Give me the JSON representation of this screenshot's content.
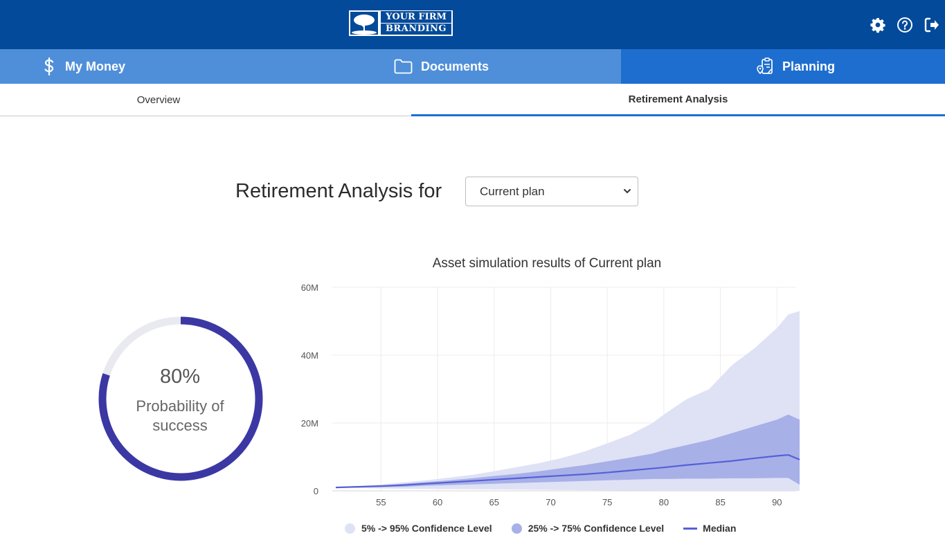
{
  "header": {
    "logo_line1": "YOUR FIRM",
    "logo_line2": "BRANDING",
    "icons": [
      "gear-icon",
      "help-icon",
      "logout-icon"
    ]
  },
  "nav": {
    "tabs": [
      {
        "label": "My Money",
        "icon": "dollar-icon"
      },
      {
        "label": "Documents",
        "icon": "folder-icon"
      },
      {
        "label": "Planning",
        "icon": "planning-icon",
        "active": true
      }
    ]
  },
  "subnav": {
    "tabs": [
      {
        "label": "Overview"
      },
      {
        "label": "Retirement Analysis",
        "active": true
      }
    ]
  },
  "main": {
    "heading": "Retirement Analysis for",
    "plan_select": {
      "value": "Current plan",
      "options": [
        "Current plan"
      ]
    }
  },
  "donut": {
    "percent_text": "80%",
    "label": "Probability of success",
    "value": 0.8,
    "colors": {
      "fill": "#3b38a4",
      "track": "#e9e9f0"
    }
  },
  "chart_data": {
    "type": "area",
    "title": "Asset simulation results of Current plan",
    "xlabel": "",
    "ylabel": "",
    "xlim": [
      51,
      92
    ],
    "ylim": [
      0,
      60000000
    ],
    "x_ticks": [
      55,
      60,
      65,
      70,
      75,
      80,
      85,
      90
    ],
    "y_ticks": [
      0,
      20000000,
      40000000,
      60000000
    ],
    "y_tick_labels": [
      "0",
      "20M",
      "40M",
      "60M"
    ],
    "grid": true,
    "legend_position": "bottom",
    "x": [
      51,
      53,
      55,
      57,
      59,
      61,
      63,
      65,
      67,
      69,
      71,
      73,
      75,
      77,
      79,
      80,
      82,
      84,
      86,
      88,
      90,
      91,
      92
    ],
    "series": [
      {
        "name": "5% -> 95% Confidence Level",
        "kind": "band",
        "color": "#dfe2f5",
        "lower": [
          1000000,
          800000,
          700000,
          600000,
          550000,
          500000,
          450000,
          400000,
          350000,
          300000,
          250000,
          200000,
          150000,
          100000,
          50000,
          0,
          0,
          0,
          0,
          0,
          0,
          0,
          0
        ],
        "upper": [
          1200000,
          1400000,
          1900000,
          2500000,
          3100000,
          3900000,
          4700000,
          5800000,
          7000000,
          8200000,
          9700000,
          11600000,
          14000000,
          16500000,
          20000000,
          22500000,
          27000000,
          30000000,
          37000000,
          42000000,
          48000000,
          52000000,
          53000000
        ]
      },
      {
        "name": "25% -> 75% Confidence Level",
        "kind": "band",
        "color": "#a8b0e8",
        "lower": [
          1000000,
          1000000,
          1100000,
          1200000,
          1500000,
          1700000,
          1900000,
          2100000,
          2300000,
          2500000,
          2700000,
          2900000,
          3100000,
          3300000,
          3500000,
          3500000,
          3600000,
          3600000,
          3700000,
          3700000,
          3800000,
          3800000,
          1800000
        ],
        "upper": [
          1100000,
          1300000,
          1600000,
          2100000,
          2600000,
          3100000,
          3700000,
          4400000,
          5000000,
          5800000,
          6700000,
          7600000,
          8700000,
          9800000,
          11000000,
          12000000,
          13500000,
          15000000,
          17000000,
          19000000,
          21000000,
          22500000,
          21000000
        ]
      },
      {
        "name": "Median",
        "kind": "line",
        "color": "#5560d6",
        "values": [
          1000000,
          1200000,
          1400000,
          1700000,
          2100000,
          2500000,
          2900000,
          3300000,
          3700000,
          4100000,
          4500000,
          4900000,
          5400000,
          6000000,
          6600000,
          6900000,
          7600000,
          8200000,
          8800000,
          9600000,
          10300000,
          10600000,
          9200000
        ]
      }
    ]
  }
}
